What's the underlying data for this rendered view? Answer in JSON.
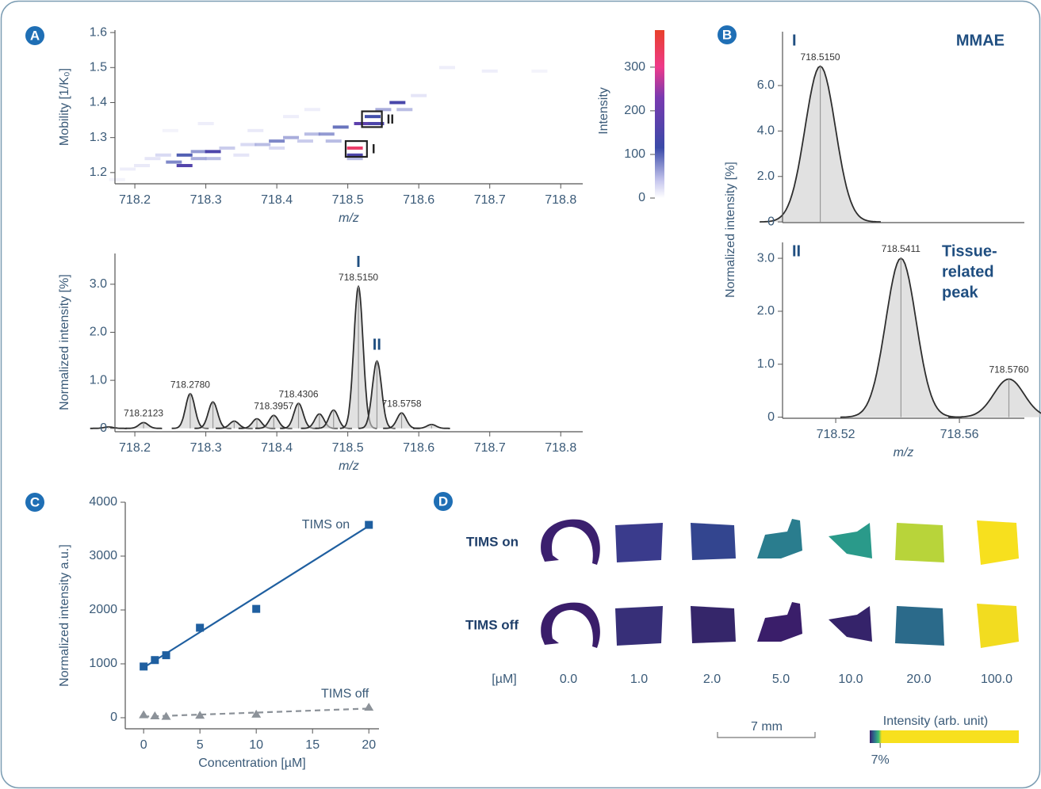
{
  "panel_labels": [
    "A",
    "B",
    "C",
    "D"
  ],
  "chart_data": [
    {
      "type": "heatmap",
      "xlabel": "m/z",
      "ylabel": "Mobility [1/K₀]",
      "colorbar_label": "Intensity",
      "xlim": [
        718.172,
        718.831
      ],
      "xticks": [
        718.2,
        718.3,
        718.4,
        718.5,
        718.6,
        718.7,
        718.8
      ],
      "ylim": [
        1.168,
        1.607
      ],
      "yticks": [
        1.2,
        1.3,
        1.4,
        1.5,
        1.6
      ],
      "clim": [
        0,
        385
      ],
      "cticks": [
        0,
        100,
        200,
        300
      ],
      "x": [
        718.175,
        718.19,
        718.21,
        718.225,
        718.24,
        718.255,
        718.27,
        718.27,
        718.29,
        718.29,
        718.31,
        718.31,
        718.33,
        718.35,
        718.36,
        718.38,
        718.4,
        718.4,
        718.42,
        718.44,
        718.45,
        718.47,
        718.49,
        718.51,
        718.51,
        718.51,
        718.52,
        718.535,
        718.54,
        718.55,
        718.57,
        718.58,
        718.6,
        718.64,
        718.7,
        718.77,
        718.3,
        718.25,
        718.42,
        718.48,
        718.37,
        718.45
      ],
      "y": [
        1.18,
        1.21,
        1.22,
        1.24,
        1.25,
        1.23,
        1.22,
        1.25,
        1.24,
        1.26,
        1.26,
        1.24,
        1.27,
        1.25,
        1.28,
        1.28,
        1.29,
        1.27,
        1.3,
        1.29,
        1.31,
        1.31,
        1.33,
        1.27,
        1.25,
        1.24,
        1.34,
        1.36,
        1.34,
        1.38,
        1.4,
        1.38,
        1.42,
        1.5,
        1.49,
        1.49,
        1.34,
        1.32,
        1.36,
        1.29,
        1.32,
        1.38
      ],
      "values": [
        15,
        20,
        25,
        30,
        40,
        90,
        160,
        110,
        70,
        80,
        150,
        60,
        50,
        30,
        40,
        60,
        90,
        40,
        70,
        50,
        60,
        80,
        100,
        330,
        150,
        60,
        180,
        120,
        150,
        70,
        140,
        60,
        30,
        20,
        20,
        15,
        20,
        15,
        20,
        60,
        25,
        20
      ],
      "boxes": [
        {
          "label": "I",
          "x": [
            718.497,
            718.527
          ],
          "y": [
            1.245,
            1.29
          ]
        },
        {
          "label": "II",
          "x": [
            718.52,
            718.548
          ],
          "y": [
            1.33,
            1.375
          ]
        }
      ]
    },
    {
      "type": "spectrum",
      "xlabel": "m/z",
      "ylabel": "Normalized intensity [%]",
      "xlim": [
        718.172,
        718.831
      ],
      "xticks": [
        718.2,
        718.3,
        718.4,
        718.5,
        718.6,
        718.7,
        718.8
      ],
      "ylim": [
        -0.07,
        3.64
      ],
      "yticks": [
        0,
        {
          "value": 1,
          "label": "1.0"
        },
        {
          "value": 2,
          "label": "2.0"
        },
        {
          "value": 3,
          "label": "3.0"
        }
      ],
      "x": [
        718.163,
        718.2123,
        718.278,
        718.31,
        718.34,
        718.372,
        718.3957,
        718.4306,
        718.46,
        718.48,
        718.515,
        718.5411,
        718.5758,
        718.618
      ],
      "values": [
        0.03,
        0.12,
        0.72,
        0.55,
        0.15,
        0.2,
        0.27,
        0.52,
        0.3,
        0.38,
        2.95,
        1.4,
        0.32,
        0.08
      ],
      "x_labels": [
        null,
        "718.2123",
        "718.2780",
        null,
        null,
        null,
        "718.3957",
        "718.4306",
        null,
        null,
        "718.5150",
        null,
        "718.5758",
        null
      ],
      "annotations": [
        {
          "text": "I",
          "x": 718.515,
          "y": 3.45
        },
        {
          "text": "II",
          "x": 718.541,
          "y": 1.72
        }
      ]
    },
    {
      "type": "spectrum",
      "ylabel": "Normalized intensity [%]",
      "label": "I",
      "title": [
        "MMAE"
      ],
      "xlim": [
        718.5028,
        718.581
      ],
      "ylim": [
        -0.03,
        8.37
      ],
      "yticks": [
        0,
        {
          "value": 2,
          "label": "2.0"
        },
        {
          "value": 4,
          "label": "4.0"
        },
        {
          "value": 6,
          "label": "6.0"
        }
      ],
      "x": [
        718.515
      ],
      "values": [
        6.85
      ],
      "x_labels": [
        "718.5150"
      ]
    },
    {
      "type": "spectrum",
      "xlabel": "m/z",
      "label": "II",
      "title": [
        "Tissue-",
        "related",
        "peak"
      ],
      "xlim": [
        718.5028,
        718.581
      ],
      "xticks": [
        718.52,
        718.56
      ],
      "ylim": [
        -0.02,
        3.3
      ],
      "yticks": [
        0,
        {
          "value": 1,
          "label": "1.0"
        },
        {
          "value": 2,
          "label": "2.0"
        },
        {
          "value": 3,
          "label": "3.0"
        }
      ],
      "x": [
        718.5411,
        718.576
      ],
      "values": [
        3.0,
        0.72
      ],
      "x_labels": [
        "718.5411",
        "718.5760"
      ]
    },
    {
      "type": "scatter",
      "xlabel": "Concentration [µM]",
      "ylabel": "Normalized intensity a.u.]",
      "xlim": [
        -1.63,
        20.9
      ],
      "xticks": [
        0,
        5,
        10,
        15,
        20
      ],
      "ylim": [
        -206,
        4000
      ],
      "yticks": [
        0,
        1000,
        2000,
        3000,
        4000
      ],
      "x": [
        0,
        1,
        2,
        5,
        10,
        20
      ],
      "series": [
        {
          "name": "TIMS on",
          "color": "#1f5fa0",
          "marker": "square",
          "line_style": "solid",
          "values": [
            950,
            1070,
            1160,
            1670,
            2020,
            3580
          ],
          "fit": [
            930,
            3560
          ]
        },
        {
          "name": "TIMS off",
          "color": "#8c9299",
          "marker": "triangle",
          "line_style": "dashed",
          "values": [
            50,
            30,
            20,
            40,
            60,
            190
          ],
          "fit": [
            20,
            170
          ]
        }
      ]
    },
    {
      "type": "image_grid",
      "unit_label": "[µM]",
      "columns": [
        "0.0",
        "1.0",
        "2.0",
        "5.0",
        "10.0",
        "20.0",
        "100.0"
      ],
      "rows": [
        {
          "name": "TIMS on",
          "colors": [
            "#3b1f6e",
            "#3a3b8c",
            "#33458f",
            "#2a7d8e",
            "#2a9a8a",
            "#b8d43a",
            "#f7e01e"
          ]
        },
        {
          "name": "TIMS off",
          "colors": [
            "#3a1d6a",
            "#372f78",
            "#35266a",
            "#3a1e6a",
            "#35236a",
            "#2b6a8a",
            "#f2dc20"
          ]
        }
      ],
      "scale_label": "7 mm",
      "colorbar_label": "Intensity (arb. unit)",
      "clim": [
        0,
        100
      ],
      "cticks": [
        {
          "value": 7,
          "label": "7%"
        }
      ]
    }
  ]
}
